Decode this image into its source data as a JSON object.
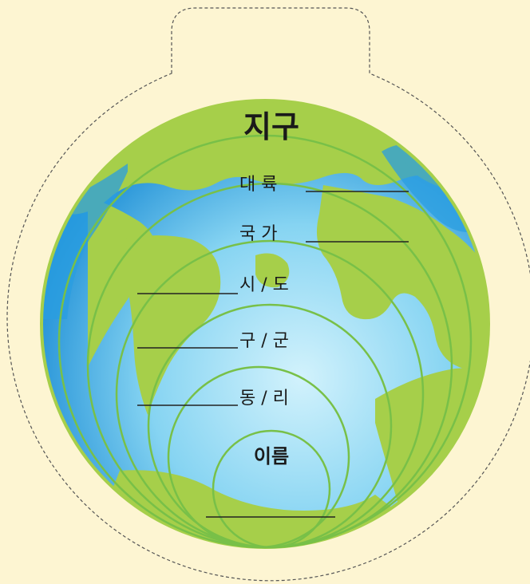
{
  "title": "지구",
  "levels": [
    {
      "label": "대   륙"
    },
    {
      "label": "국   가"
    },
    {
      "label": "시 / 도"
    },
    {
      "label": "구 / 군"
    },
    {
      "label": "동 / 리"
    },
    {
      "label": "이름"
    }
  ],
  "colors": {
    "background": "#fdf5d2",
    "land": "#a6cf4a",
    "ocean_light": "#bfeaf8",
    "ocean_dark": "#1f8fd6",
    "ring": "#78c048",
    "cutline": "#555555"
  }
}
